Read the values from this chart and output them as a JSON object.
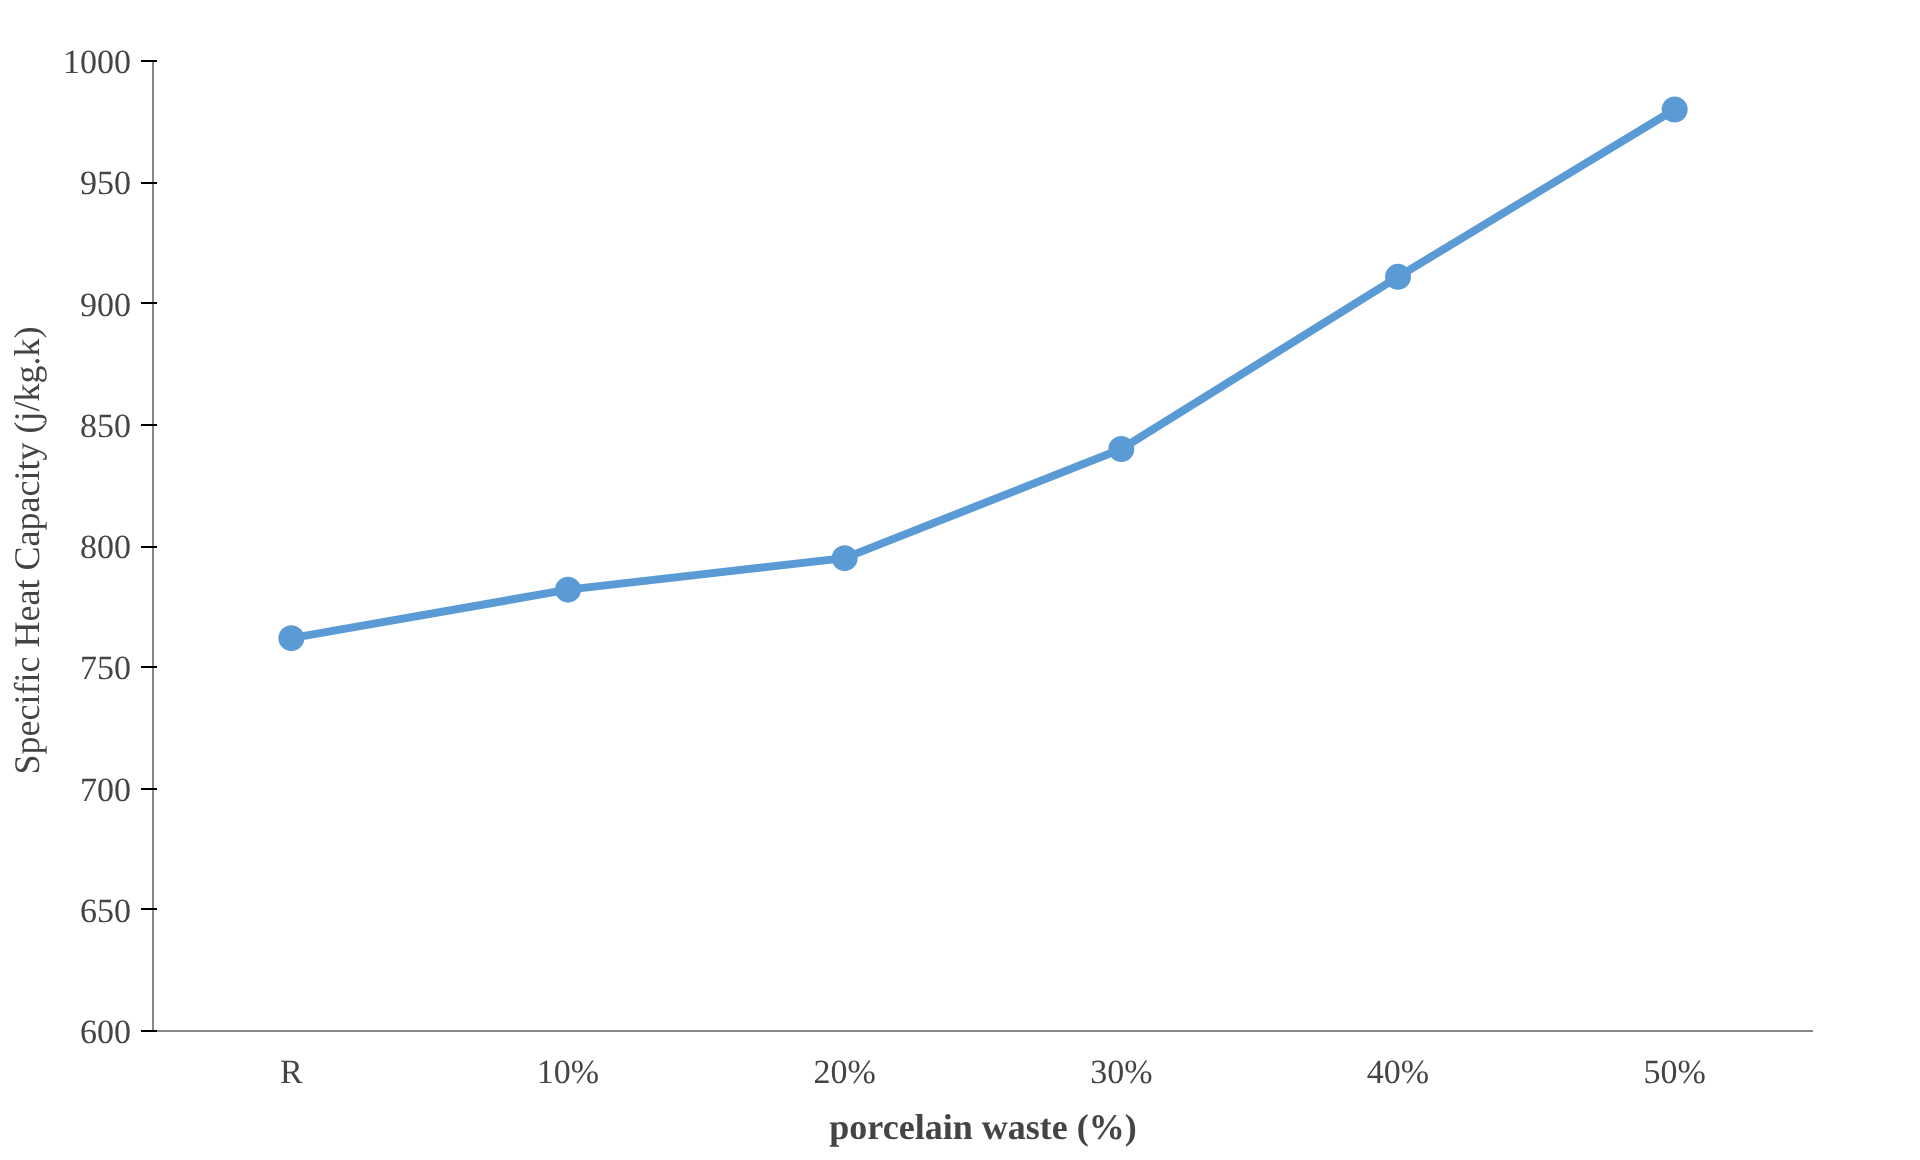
{
  "chart_data": {
    "type": "line",
    "xlabel": "porcelain waste (%)",
    "ylabel": "Specific Heat Capacity  (j/kg.k)",
    "categories": [
      "R",
      "10%",
      "20%",
      "30%",
      "40%",
      "50%"
    ],
    "series": [
      {
        "color": "#5b9bd5",
        "values": [
          762,
          782,
          795,
          840,
          911,
          980
        ]
      }
    ],
    "ylim": [
      600,
      1000
    ],
    "yticks": [
      600,
      650,
      700,
      750,
      800,
      850,
      900,
      950,
      1000
    ],
    "grid": false,
    "marker": "circle",
    "line_style": "solid"
  }
}
